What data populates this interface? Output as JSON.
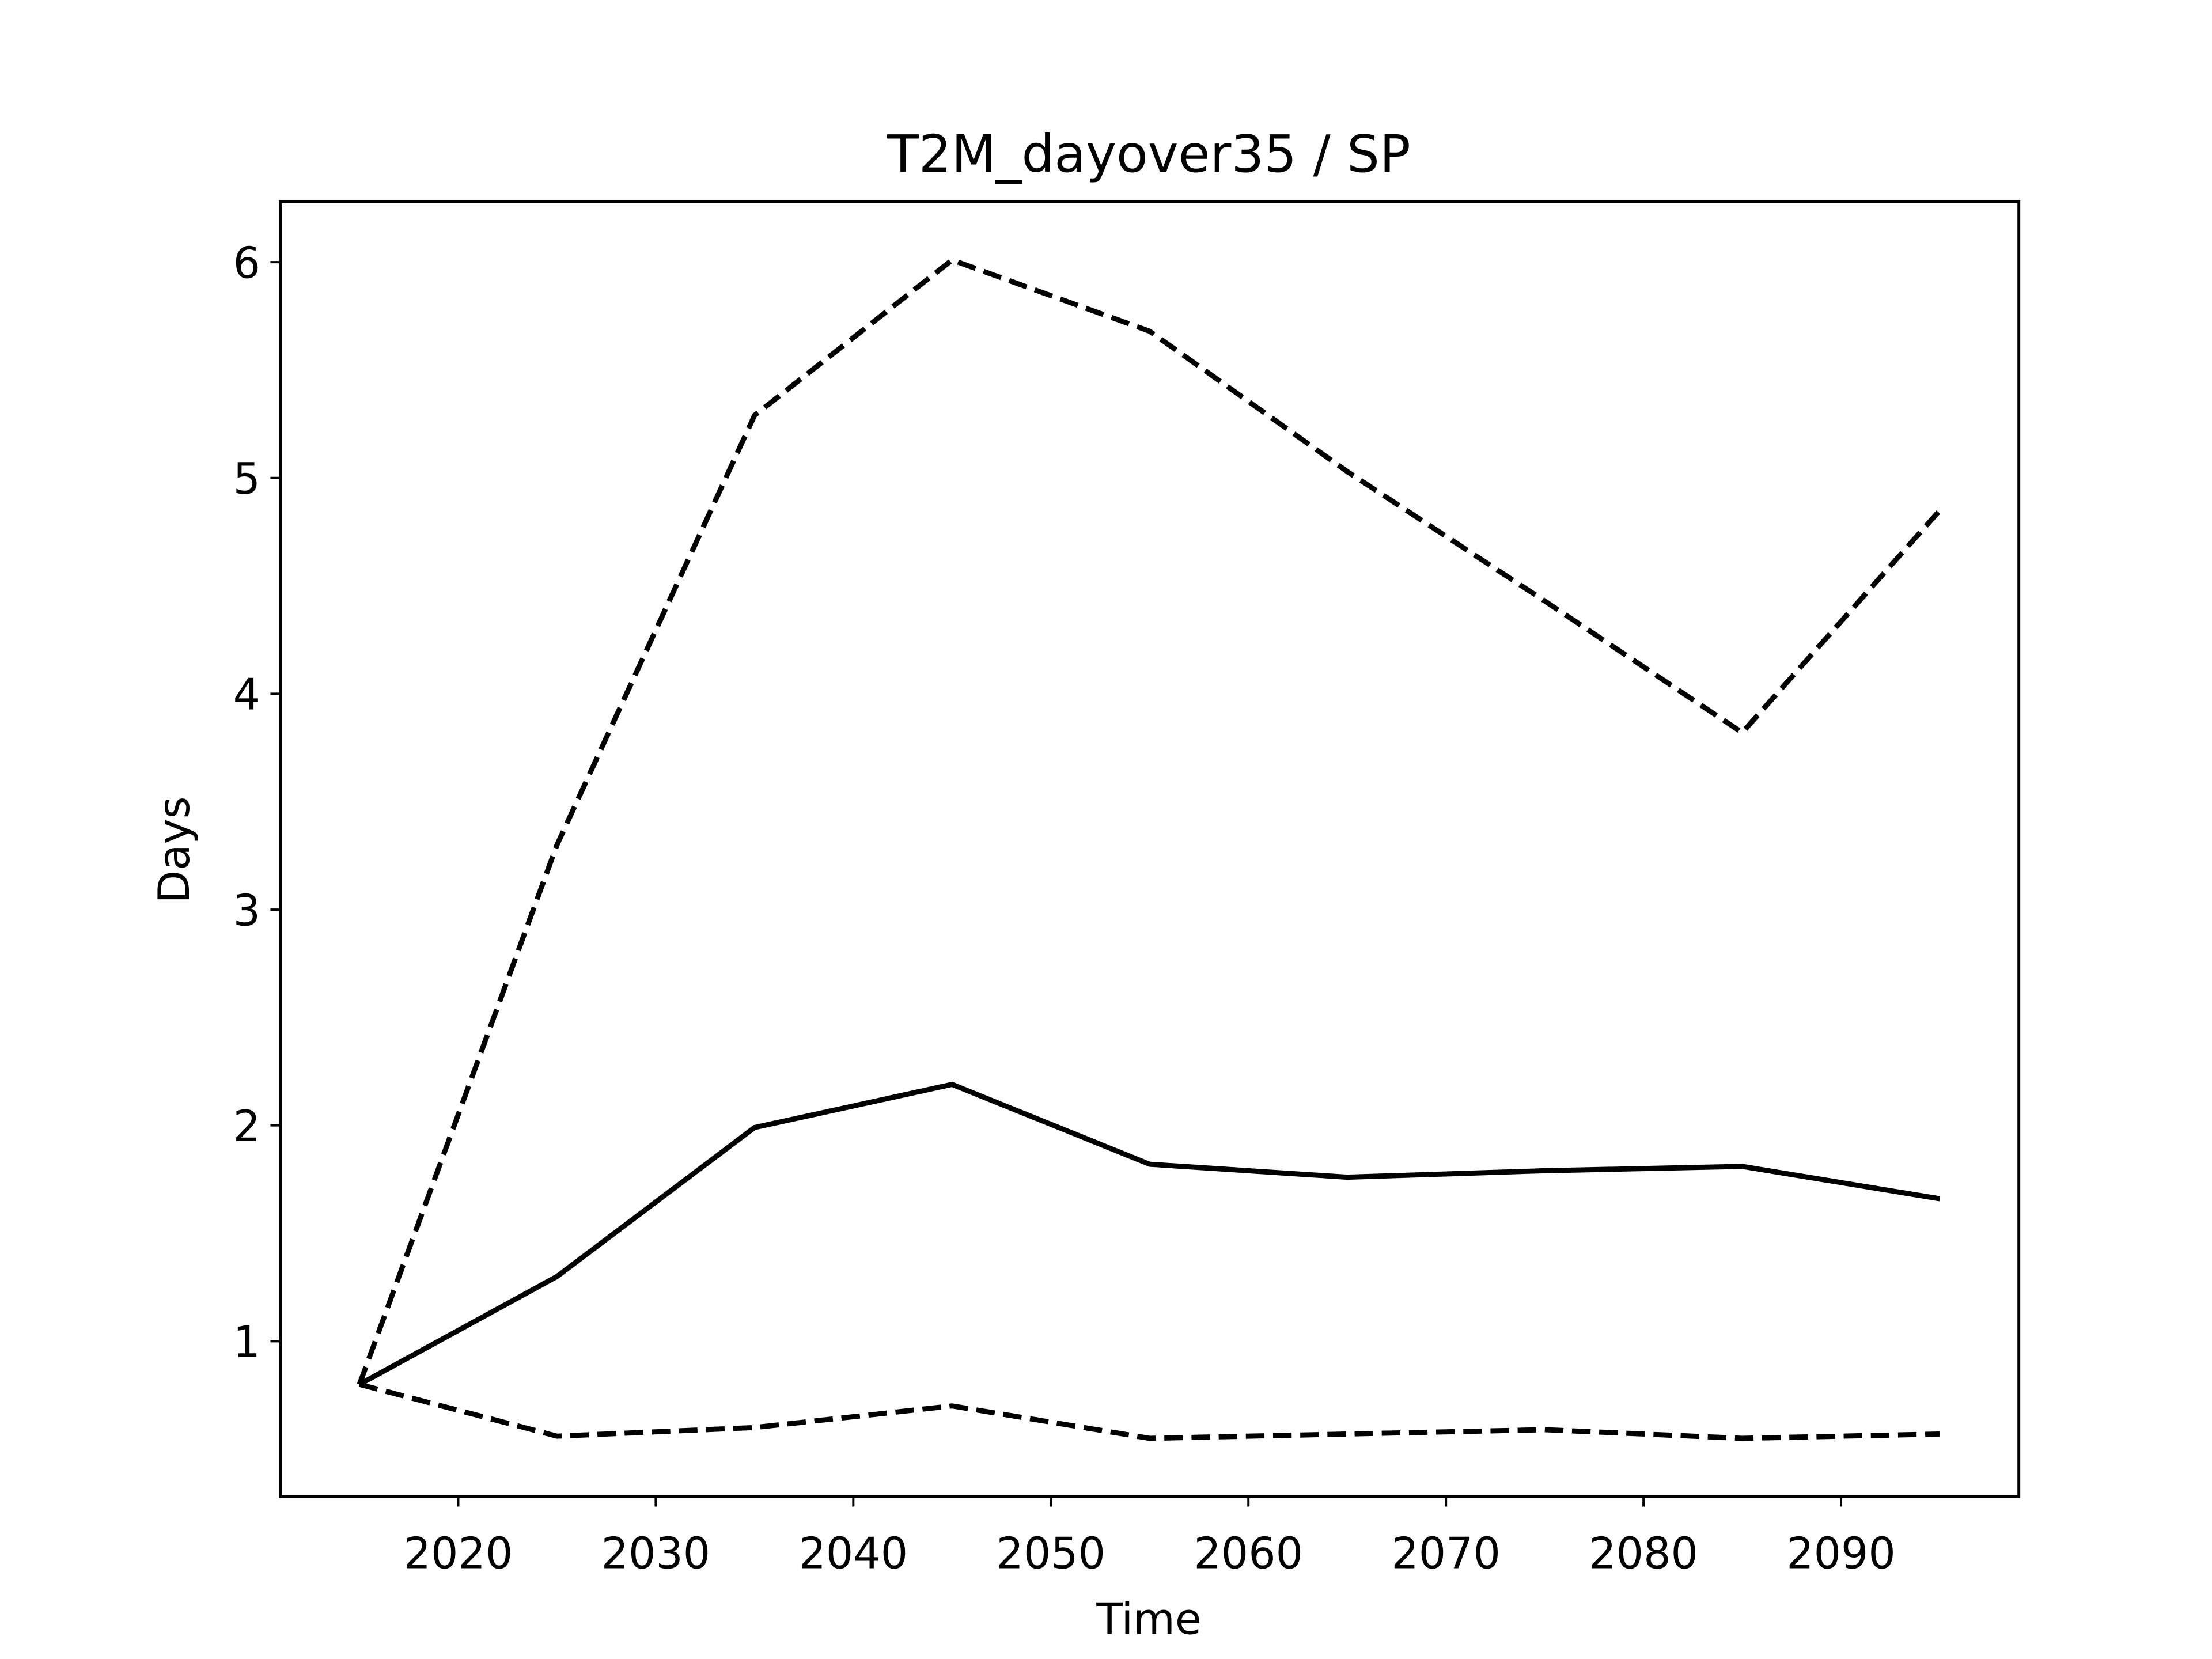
{
  "chart_data": {
    "type": "line",
    "title": "T2M_dayover35 / SP",
    "xlabel": "Time",
    "ylabel": "Days",
    "x": [
      2015,
      2025,
      2035,
      2045,
      2055,
      2065,
      2075,
      2085,
      2095
    ],
    "series": [
      {
        "color": "#000000",
        "style": "dashed",
        "values": [
          0.8,
          3.3,
          5.29,
          6.01,
          5.68,
          5.03,
          4.43,
          3.82,
          4.85
        ]
      },
      {
        "color": "#000000",
        "style": "solid",
        "values": [
          0.8,
          1.3,
          1.99,
          2.19,
          1.82,
          1.76,
          1.79,
          1.81,
          1.66
        ]
      },
      {
        "color": "#000000",
        "style": "dashed",
        "values": [
          0.8,
          0.56,
          0.6,
          0.7,
          0.55,
          0.57,
          0.59,
          0.55,
          0.57
        ]
      }
    ],
    "xlim": [
      2011,
      2099
    ],
    "xticks": [
      2020,
      2030,
      2040,
      2050,
      2060,
      2070,
      2080,
      2090
    ],
    "ylim": [
      0.28,
      6.28
    ],
    "yticks": [
      1,
      2,
      3,
      4,
      5,
      6
    ],
    "grid": false
  }
}
